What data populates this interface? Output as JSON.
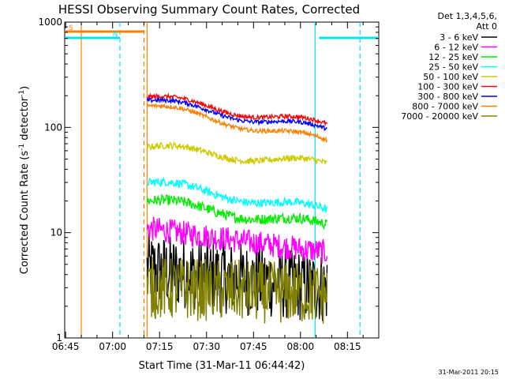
{
  "chart_data": {
    "type": "line",
    "title": "HESSI Observing Summary Count Rates, Corrected",
    "xlabel": "Start Time (31-Mar-11 06:44:42)",
    "ylabel_main": "Corrected Count Rate (s",
    "ylabel_sup1": "-1",
    "ylabel_mid": " detector",
    "ylabel_sup2": "-1",
    "ylabel_end": ")",
    "yscale": "log",
    "ylim": [
      1,
      1000
    ],
    "yticks": [
      1,
      10,
      100,
      1000
    ],
    "ytick_labels": [
      "1",
      "10",
      "100",
      "1000"
    ],
    "xlim": [
      "06:44:42",
      "08:25:00"
    ],
    "xticks": [
      "06:45",
      "07:00",
      "07:15",
      "07:30",
      "07:45",
      "08:00",
      "08:15"
    ],
    "legend_title_line1": "Det 1,3,4,5,6,",
    "legend_title_line2": "Att 0",
    "legend_position": "right-top",
    "flags": [
      {
        "label": "S",
        "color": "#ff8000",
        "start": "06:44:42",
        "end": "07:10:00"
      },
      {
        "label": "N",
        "color": "#00e5ee",
        "start": "06:44:42",
        "end": "07:02:20"
      },
      {
        "label": "",
        "color": "#00e5ee",
        "start": "08:06:00",
        "end": "08:25:00"
      }
    ],
    "vertical_lines": [
      {
        "time": "06:50:00",
        "color": "#ff8000",
        "style": "solid"
      },
      {
        "time": "07:02:20",
        "color": "#00e5ee",
        "style": "dashed"
      },
      {
        "time": "07:10:00",
        "color": "#ff8000",
        "style": "dashed"
      },
      {
        "time": "07:11:00",
        "color": "#ff8000",
        "style": "solid"
      },
      {
        "time": "08:04:40",
        "color": "#00e5ee",
        "style": "solid"
      },
      {
        "time": "08:19:00",
        "color": "#00e5ee",
        "style": "dashed"
      }
    ],
    "data_start": "07:11:00",
    "data_end": "08:08:30",
    "series": [
      {
        "name": "3 - 6 keV",
        "color": "#000000",
        "start_value": 4.5,
        "end_value": 3.0,
        "noise": 0.35
      },
      {
        "name": "6 - 12 keV",
        "color": "#ff00ff",
        "start_value": 11.0,
        "end_value": 6.5,
        "noise": 0.12
      },
      {
        "name": "12 - 25 keV",
        "color": "#00ee00",
        "start_value": 20.0,
        "end_value": 11.5,
        "noise": 0.05
      },
      {
        "name": "25 - 50 keV",
        "color": "#00ffff",
        "start_value": 30.0,
        "end_value": 16.0,
        "noise": 0.04
      },
      {
        "name": "50 - 100 keV",
        "color": "#cccc00",
        "start_value": 65.0,
        "end_value": 44.0,
        "noise": 0.03
      },
      {
        "name": "100 - 300 keV",
        "color": "#ff0000",
        "start_value": 195.0,
        "end_value": 104.0,
        "noise": 0.02
      },
      {
        "name": "300 - 800 keV",
        "color": "#0000ff",
        "start_value": 180.0,
        "end_value": 93.0,
        "noise": 0.02
      },
      {
        "name": "800 - 7000 keV",
        "color": "#ff8000",
        "start_value": 160.0,
        "end_value": 73.0,
        "noise": 0.02
      },
      {
        "name": "7000 - 20000 keV",
        "color": "#808000",
        "start_value": 3.0,
        "end_value": 2.6,
        "noise": 0.3
      }
    ]
  },
  "footer": {
    "timestamp": "31-Mar-2011 20:15"
  }
}
